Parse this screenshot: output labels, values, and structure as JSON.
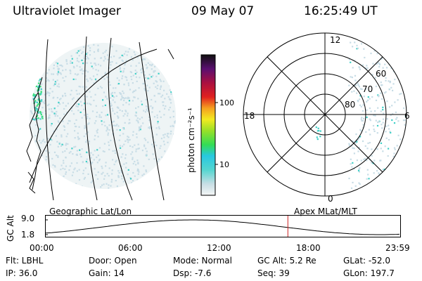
{
  "header": {
    "title": "Ultraviolet Imager",
    "date": "09 May 07",
    "time": "16:25:49 UT"
  },
  "colorbar": {
    "label": "photon cm⁻²s⁻¹",
    "ticks": [
      "100",
      "10"
    ]
  },
  "polar_plot": {
    "mlt_labels": {
      "top": "12",
      "left": "18",
      "right": "6",
      "bottom": "0"
    },
    "lat_labels": [
      "60",
      "70",
      "80"
    ]
  },
  "timeline": {
    "ylabel": "GC Alt",
    "yticks": [
      "9.0",
      "1.8"
    ],
    "left_caption": "Geographic Lat/Lon",
    "right_caption": "Apex MLat/MLT",
    "xticks": [
      "00:00",
      "06:00",
      "12:00",
      "18:00",
      "23:59"
    ],
    "current_time_hours": 16.43
  },
  "info": {
    "row1": {
      "filter": "Flt: LBHL",
      "door": "Door: Open",
      "mode": "Mode: Normal",
      "gc_alt": "GC Alt: 5.2 Re",
      "glat": "GLat: -52.0"
    },
    "row2": {
      "ip": "IP: 36.0",
      "gain": "Gain: 14",
      "dsp": "Dsp:   -7.6",
      "seq": "Seq: 39",
      "glon": "GLon: 197.7"
    }
  },
  "colors": {
    "marker": "#cc2222",
    "speckle_light": "#c8dde6",
    "speckle_cyan": "#40d0c8",
    "speckle_green": "#3ce07a"
  }
}
